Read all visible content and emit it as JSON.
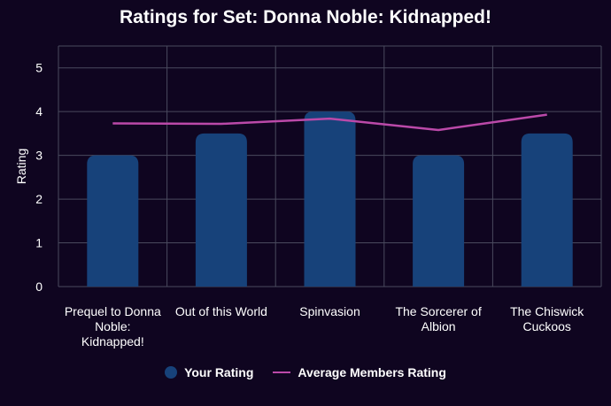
{
  "chart_data": {
    "type": "bar",
    "title": "Ratings for Set: Donna Noble: Kidnapped!",
    "xlabel": "",
    "ylabel": "Rating",
    "ylim": [
      0,
      5.5
    ],
    "yticks": [
      0,
      1,
      2,
      3,
      4,
      5
    ],
    "grid": true,
    "legend_placement": "bottom",
    "categories": [
      "Prequel to Donna Noble: Kidnapped!",
      "Out of this World",
      "Spinvasion",
      "The Sorcerer of Albion",
      "The Chiswick Cuckoos"
    ],
    "category_lines": [
      [
        "Prequel to Donna",
        "Noble:",
        "Kidnapped!"
      ],
      [
        "Out of this World"
      ],
      [
        "Spinvasion"
      ],
      [
        "The Sorcerer of",
        "Albion"
      ],
      [
        "The Chiswick",
        "Cuckoos"
      ]
    ],
    "series": [
      {
        "name": "Your Rating",
        "type": "bar",
        "color": "#17427a",
        "values": [
          3,
          3.5,
          4,
          3,
          3.5
        ]
      },
      {
        "name": "Average Members Rating",
        "type": "line",
        "color": "#bb49a9",
        "values": [
          3.73,
          3.72,
          3.84,
          3.58,
          3.93
        ]
      }
    ]
  },
  "colors": {
    "background": "#0f0520",
    "grid": "#4a4a5e",
    "text": "#ffffff"
  }
}
